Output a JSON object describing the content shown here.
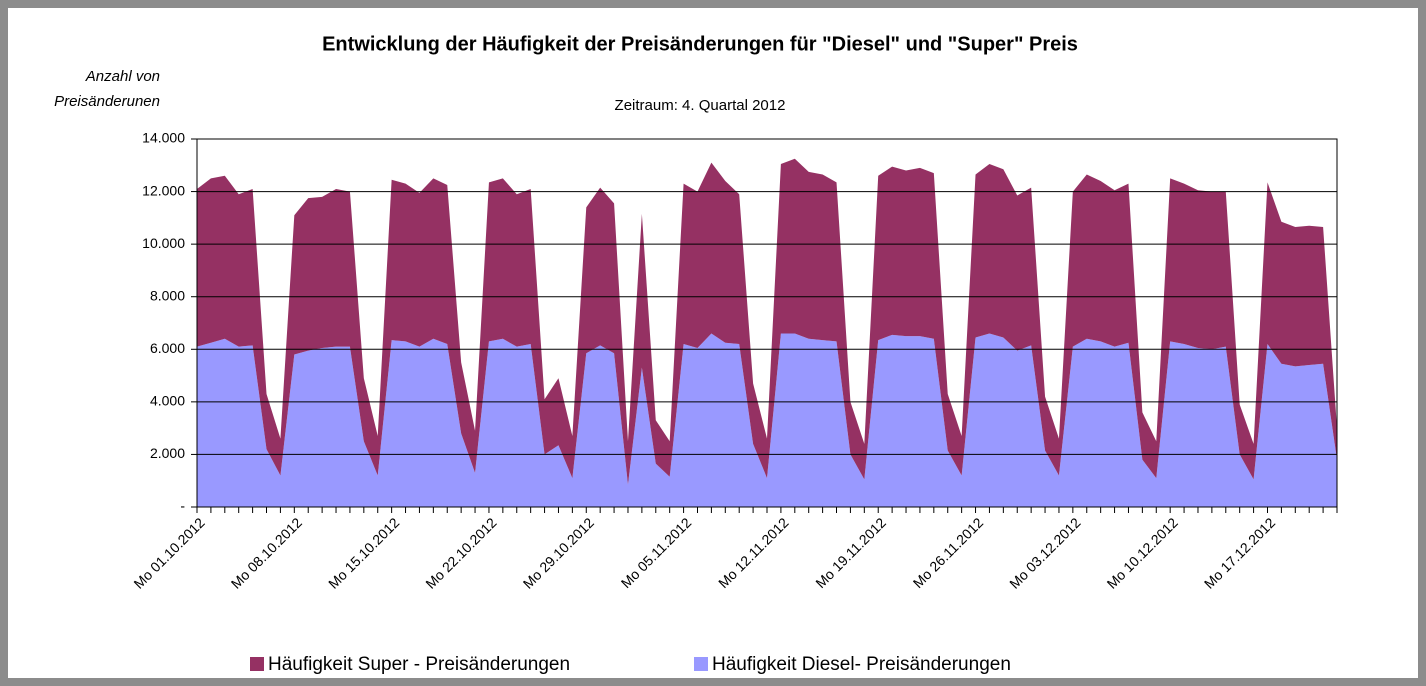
{
  "chart_data": {
    "type": "stacked_area",
    "title": "Entwicklung der Häufigkeit der Preisänderungen für \"Diesel\" und \"Super\" Preis",
    "subtitle": "Zeitraum: 4. Quartal 2012",
    "y_label": [
      "Anzahl von",
      "Preisänderunen"
    ],
    "categories": [
      "Mo 01.10.2012",
      null,
      null,
      null,
      null,
      null,
      null,
      "Mo 08.10.2012",
      null,
      null,
      null,
      null,
      null,
      null,
      "Mo 15.10.2012",
      null,
      null,
      null,
      null,
      null,
      null,
      "Mo 22.10.2012",
      null,
      null,
      null,
      null,
      null,
      null,
      "Mo 29.10.2012",
      null,
      null,
      null,
      null,
      null,
      null,
      "Mo 05.11.2012",
      null,
      null,
      null,
      null,
      null,
      null,
      "Mo 12.11.2012",
      null,
      null,
      null,
      null,
      null,
      null,
      "Mo 19.11.2012",
      null,
      null,
      null,
      null,
      null,
      null,
      "Mo 26.11.2012",
      null,
      null,
      null,
      null,
      null,
      null,
      "Mo 03.12.2012",
      null,
      null,
      null,
      null,
      null,
      null,
      "Mo 10.12.2012",
      null,
      null,
      null,
      null,
      null,
      null,
      "Mo 17.12.2012",
      null,
      null,
      null,
      null,
      null
    ],
    "series": [
      {
        "name": "Häufigkeit Super - Preisänderungen",
        "color": "#953163",
        "values": [
          6000,
          6250,
          6200,
          5800,
          5950,
          2100,
          1400,
          5300,
          5800,
          5750,
          6000,
          5900,
          2400,
          1500,
          6100,
          6000,
          5850,
          6100,
          6050,
          2700,
          1600,
          6050,
          6100,
          5800,
          5900,
          2100,
          2550,
          1600,
          5550,
          6000,
          5700,
          1650,
          5850,
          1650,
          1350,
          6100,
          5950,
          6500,
          6150,
          5700,
          2300,
          1500,
          6450,
          6650,
          6350,
          6300,
          6050,
          2000,
          1350,
          6250,
          6400,
          6300,
          6400,
          6300,
          2150,
          1500,
          6200,
          6450,
          6400,
          5900,
          6000,
          2050,
          1400,
          5900,
          6250,
          6100,
          5950,
          6050,
          1800,
          1400,
          6200,
          6100,
          6000,
          6000,
          5900,
          1900,
          1350,
          6150,
          5400,
          5300,
          5300,
          5200,
          1200
        ]
      },
      {
        "name": "Häufigkeit Diesel- Preisänderungen",
        "color": "#9999ff",
        "values": [
          6100,
          6250,
          6400,
          6100,
          6150,
          2200,
          1200,
          5800,
          5950,
          6050,
          6100,
          6100,
          2500,
          1200,
          6350,
          6300,
          6100,
          6400,
          6200,
          2800,
          1300,
          6300,
          6400,
          6100,
          6200,
          2000,
          2350,
          1100,
          5850,
          6150,
          5850,
          850,
          5300,
          1650,
          1150,
          6200,
          6050,
          6600,
          6250,
          6200,
          2400,
          1100,
          6600,
          6600,
          6400,
          6350,
          6300,
          2000,
          1050,
          6350,
          6550,
          6500,
          6500,
          6400,
          2150,
          1200,
          6450,
          6600,
          6450,
          5950,
          6150,
          2150,
          1200,
          6100,
          6400,
          6300,
          6100,
          6250,
          1800,
          1100,
          6300,
          6200,
          6050,
          6000,
          6100,
          2000,
          1050,
          6200,
          5450,
          5350,
          5400,
          5450,
          1800
        ]
      }
    ],
    "ylim": [
      0,
      14000
    ],
    "yticks": [
      {
        "value": 0,
        "label": "-"
      },
      {
        "value": 2000,
        "label": "2.000"
      },
      {
        "value": 4000,
        "label": "4.000"
      },
      {
        "value": 6000,
        "label": "6.000"
      },
      {
        "value": 8000,
        "label": "8.000"
      },
      {
        "value": 10000,
        "label": "10.000"
      },
      {
        "value": 12000,
        "label": "12.000"
      },
      {
        "value": 14000,
        "label": "14.000"
      }
    ],
    "grid": true,
    "legend": "bottom"
  }
}
